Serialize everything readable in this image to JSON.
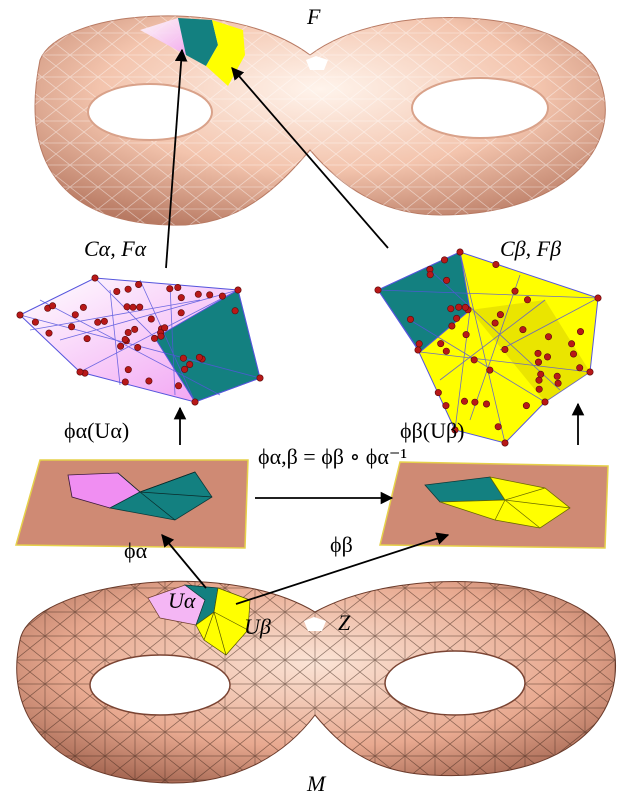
{
  "labels": {
    "F": "F",
    "M": "M",
    "Z": "Z",
    "c_alpha": "Cα, Fα",
    "c_beta": "Cβ, Fβ",
    "phi_alpha_u": "ϕα(Uα)",
    "phi_beta_u": "ϕβ(Uβ)",
    "transition": "ϕα,β = ϕβ ∘ ϕα⁻¹",
    "phi_alpha": "ϕα",
    "phi_beta": "ϕβ",
    "u_alpha": "Uα",
    "u_beta": "Uβ"
  },
  "colors": {
    "surface": "#f2c1a9",
    "surface_dark": "#b9775e",
    "magenta": "#f08ef2",
    "teal": "#138080",
    "yellow": "#ffff00",
    "plane": "#cf8a74",
    "mesh_line": "#5555dd",
    "node": "#b81818"
  }
}
